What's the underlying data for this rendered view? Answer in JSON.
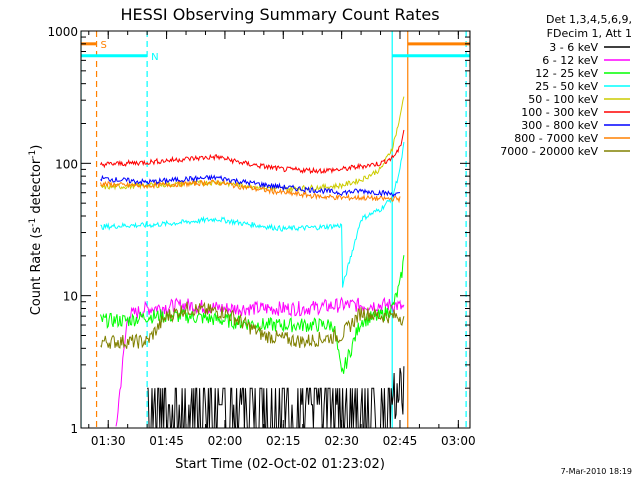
{
  "chart_data": {
    "type": "line",
    "title": "HESSI Observing Summary Count Rates",
    "xlabel": "Start Time (02-Oct-02 01:23:02)",
    "ylabel_main": "Count Rate (s",
    "ylabel_sup1": "-1",
    "ylabel_mid": " detector",
    "ylabel_sup2": "-1",
    "ylabel_end": ")",
    "yscale": "log",
    "ylim": [
      1,
      1000
    ],
    "xlim": [
      "01:23",
      "03:03"
    ],
    "x_ticks": [
      "01:30",
      "01:45",
      "02:00",
      "02:15",
      "02:30",
      "02:45",
      "03:00"
    ],
    "y_ticks": [
      "1",
      "10",
      "100",
      "1000"
    ],
    "legend_header": [
      "Det 1,3,4,5,6,9,",
      "FDecim 1, Att 1"
    ],
    "legend_position": "right",
    "timestamp": "7-Mar-2010 18:19",
    "flags": [
      {
        "label": "S",
        "color": "#ff8000",
        "from": "01:23",
        "to": "01:27",
        "level": 800,
        "marker": "01:27"
      },
      {
        "label": "N",
        "color": "#00ffff",
        "from": "01:23",
        "to": "01:40",
        "level": 650,
        "marker": "01:40"
      }
    ],
    "flag_spans": [
      {
        "color": "#00ffff",
        "from": "02:43",
        "to": "03:03",
        "level": 650
      },
      {
        "color": "#ff8000",
        "from": "02:47",
        "to": "03:03",
        "level": 800
      }
    ],
    "vertical_markers": [
      {
        "time": "01:23",
        "color": "#00ffff",
        "style": "solid"
      },
      {
        "time": "01:27",
        "color": "#ff8000",
        "style": "dashed"
      },
      {
        "time": "01:40",
        "color": "#00ffff",
        "style": "dashed"
      },
      {
        "time": "02:43",
        "color": "#00ffff",
        "style": "solid"
      },
      {
        "time": "02:47",
        "color": "#ff8000",
        "style": "solid"
      },
      {
        "time": "03:02",
        "color": "#00ffff",
        "style": "dashed"
      },
      {
        "time": "03:03",
        "color": "#ff8000",
        "style": "dashed"
      }
    ],
    "series": [
      {
        "name": "3 - 6 keV",
        "color": "#000000",
        "start": "01:40",
        "end": "02:46",
        "times": [
          "01:40",
          "01:45",
          "01:55",
          "02:05",
          "02:15",
          "02:25",
          "02:30",
          "02:35",
          "02:40",
          "02:45",
          "02:46"
        ],
        "values": [
          1.5,
          1.6,
          1.5,
          1.5,
          1.4,
          1.6,
          1.5,
          1.7,
          1.8,
          2.2,
          2.5
        ]
      },
      {
        "name": "6 - 12 keV",
        "color": "#ff00ff",
        "start": "01:32",
        "end": "02:46",
        "times": [
          "01:32",
          "01:35",
          "01:40",
          "01:50",
          "02:00",
          "02:10",
          "02:20",
          "02:30",
          "02:35",
          "02:40",
          "02:44",
          "02:46"
        ],
        "values": [
          1.0,
          7,
          8,
          8.5,
          8,
          8,
          8,
          8.5,
          8.5,
          8.5,
          8.5,
          8
        ]
      },
      {
        "name": "12 - 25 keV",
        "color": "#00ff00",
        "start": "01:28",
        "end": "02:46",
        "times": [
          "01:28",
          "01:35",
          "01:40",
          "01:50",
          "02:00",
          "02:10",
          "02:20",
          "02:28",
          "02:30",
          "02:35",
          "02:40",
          "02:43",
          "02:45",
          "02:46"
        ],
        "values": [
          6.5,
          6.5,
          7,
          7,
          6.5,
          6,
          6,
          6,
          2.5,
          6.5,
          7,
          8,
          12,
          19
        ]
      },
      {
        "name": "25 - 50 keV",
        "color": "#00ffff",
        "start": "01:28",
        "end": "02:46",
        "times": [
          "01:28",
          "01:35",
          "01:40",
          "01:50",
          "01:58",
          "02:05",
          "02:15",
          "02:25",
          "02:30",
          "02:30",
          "02:35",
          "02:40",
          "02:43",
          "02:45",
          "02:46"
        ],
        "values": [
          33,
          34,
          34,
          36,
          38,
          35,
          32,
          33,
          34,
          11,
          38,
          45,
          55,
          90,
          140
        ]
      },
      {
        "name": "50 - 100 keV",
        "color": "#cccc00",
        "start": "01:28",
        "end": "02:46",
        "times": [
          "01:28",
          "01:35",
          "01:40",
          "01:50",
          "01:58",
          "02:05",
          "02:15",
          "02:25",
          "02:30",
          "02:35",
          "02:40",
          "02:43",
          "02:45",
          "02:46"
        ],
        "values": [
          66,
          67,
          68,
          70,
          72,
          68,
          64,
          66,
          68,
          75,
          90,
          130,
          220,
          330
        ]
      },
      {
        "name": "100 - 300 keV",
        "color": "#ff0000",
        "start": "01:28",
        "end": "02:46",
        "times": [
          "01:28",
          "01:35",
          "01:40",
          "01:50",
          "01:58",
          "02:05",
          "02:15",
          "02:25",
          "02:30",
          "02:35",
          "02:40",
          "02:43",
          "02:45",
          "02:46"
        ],
        "values": [
          98,
          100,
          102,
          108,
          112,
          100,
          90,
          88,
          90,
          95,
          100,
          110,
          130,
          180
        ]
      },
      {
        "name": "300 - 800 keV",
        "color": "#0000ff",
        "start": "01:28",
        "end": "02:45",
        "times": [
          "01:28",
          "01:35",
          "01:40",
          "01:50",
          "01:58",
          "02:05",
          "02:15",
          "02:25",
          "02:30",
          "02:35",
          "02:40",
          "02:45"
        ],
        "values": [
          77,
          74,
          72,
          76,
          78,
          72,
          66,
          62,
          60,
          62,
          60,
          58
        ]
      },
      {
        "name": "800 - 7000 keV",
        "color": "#ff8000",
        "start": "01:28",
        "end": "02:45",
        "times": [
          "01:28",
          "01:35",
          "01:40",
          "01:50",
          "01:58",
          "02:05",
          "02:15",
          "02:25",
          "02:30",
          "02:35",
          "02:40",
          "02:45"
        ],
        "values": [
          70,
          68,
          68,
          70,
          72,
          66,
          60,
          56,
          55,
          55,
          54,
          54
        ]
      },
      {
        "name": "7000 - 20000 keV",
        "color": "#808000",
        "start": "01:28",
        "end": "02:46",
        "times": [
          "01:28",
          "01:35",
          "01:40",
          "01:45",
          "01:50",
          "02:00",
          "02:10",
          "02:20",
          "02:30",
          "02:35",
          "02:40",
          "02:45",
          "02:46"
        ],
        "values": [
          4.5,
          4.5,
          4.5,
          7,
          8,
          7.5,
          5,
          4.5,
          5,
          7.5,
          7,
          7,
          6.5
        ]
      }
    ]
  }
}
